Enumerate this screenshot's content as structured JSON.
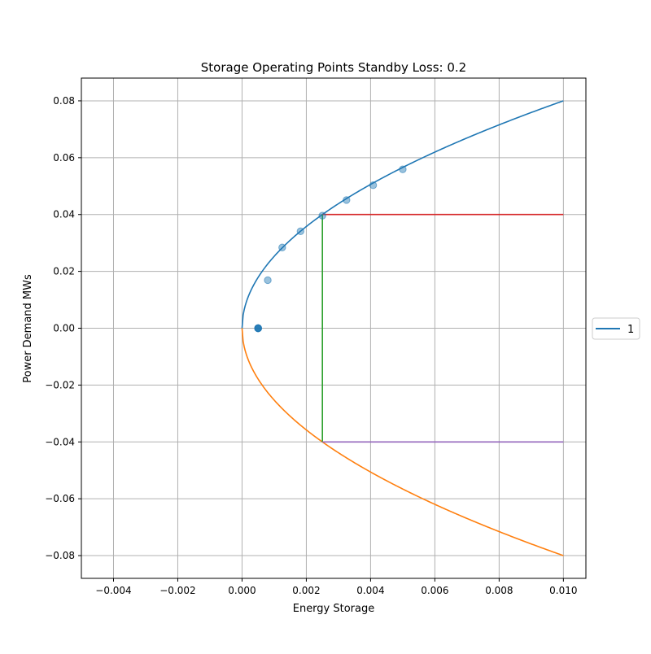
{
  "chart_data": {
    "type": "line",
    "title": "Storage Operating Points Standby Loss: 0.2",
    "xlabel": "Energy Storage",
    "ylabel": "Power Demand MWs",
    "xlim": [
      -0.005,
      0.0107
    ],
    "ylim": [
      -0.088,
      0.088
    ],
    "grid": true,
    "x_ticks": [
      -0.004,
      -0.002,
      0.0,
      0.002,
      0.004,
      0.006,
      0.008,
      0.01
    ],
    "x_tick_labels": [
      "−0.004",
      "−0.002",
      "0.000",
      "0.002",
      "0.004",
      "0.006",
      "0.008",
      "0.010"
    ],
    "y_ticks": [
      0.08,
      0.06,
      0.04,
      0.02,
      0.0,
      -0.02,
      -0.04,
      -0.06,
      -0.08
    ],
    "y_tick_labels": [
      "0.08",
      "0.06",
      "0.04",
      "0.02",
      "0.00",
      "−0.02",
      "−0.04",
      "−0.06",
      "−0.08"
    ],
    "legend": {
      "placement": "right-outside",
      "entries": [
        {
          "label": "1",
          "color": "#1f77b4"
        }
      ]
    },
    "curves": [
      {
        "color": "#1f77b4",
        "formula": "y = 0.8*sqrt(x)",
        "x_range": [
          0,
          0.01
        ]
      },
      {
        "color": "#ff7f0e",
        "formula": "y = -0.8*sqrt(x)",
        "x_range": [
          0,
          0.01
        ]
      }
    ],
    "segments": [
      {
        "color": "#d62728",
        "from": [
          0.0025,
          0.04
        ],
        "to": [
          0.01,
          0.04
        ]
      },
      {
        "color": "#2ca02c",
        "from": [
          0.0025,
          -0.04
        ],
        "to": [
          0.0025,
          0.04
        ]
      },
      {
        "color": "#9467bd",
        "from": [
          0.0025,
          -0.04
        ],
        "to": [
          0.01,
          -0.04
        ]
      }
    ],
    "scatter": {
      "color": "#1f77b4",
      "alpha": 0.45,
      "points": [
        [
          0.0005,
          0.0
        ],
        [
          0.0005,
          0.0
        ],
        [
          0.0005,
          0.0
        ],
        [
          0.0005,
          0.0
        ],
        [
          0.0005,
          0.0
        ],
        [
          0.0008,
          0.0169
        ],
        [
          0.00125,
          0.0284
        ],
        [
          0.00182,
          0.0341
        ],
        [
          0.0025,
          0.0396
        ],
        [
          0.00325,
          0.0451
        ],
        [
          0.00408,
          0.0503
        ],
        [
          0.005,
          0.0559
        ]
      ]
    }
  }
}
